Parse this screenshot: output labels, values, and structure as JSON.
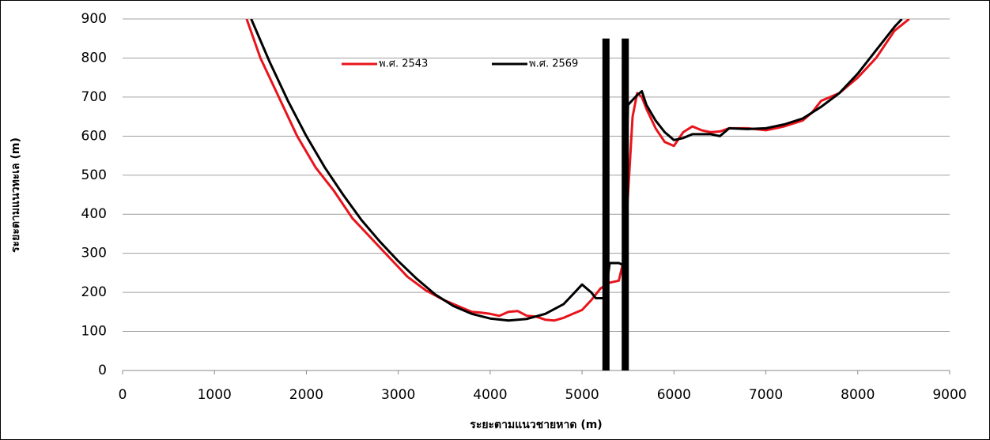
{
  "chart_data": {
    "type": "line",
    "x_label": "ระยะตามแนวชายหาด (m)",
    "y_label": "ระยะตามแนวทะเล (m)",
    "xlim": [
      0,
      9000
    ],
    "xticks": [
      0,
      1000,
      2000,
      3000,
      4000,
      5000,
      6000,
      7000,
      8000,
      9000
    ],
    "ylim": [
      0,
      900
    ],
    "yticks": [
      0,
      100,
      200,
      300,
      400,
      500,
      600,
      700,
      800,
      900
    ],
    "grid": true,
    "legend": "top",
    "series": [
      {
        "name": "พ.ศ. 2543",
        "color": "#e8141b",
        "x": [
          1350,
          1500,
          1700,
          1900,
          2100,
          2300,
          2500,
          2700,
          2900,
          3100,
          3300,
          3500,
          3700,
          3800,
          3900,
          4000,
          4100,
          4200,
          4300,
          4400,
          4500,
          4600,
          4700,
          4800,
          4900,
          5000,
          5100,
          5200,
          5300,
          5400,
          5450,
          5500,
          5550,
          5600,
          5650,
          5700,
          5800,
          5900,
          6000,
          6100,
          6200,
          6300,
          6400,
          6500,
          6600,
          6800,
          7000,
          7200,
          7400,
          7500,
          7600,
          7800,
          8000,
          8200,
          8400,
          8560
        ],
        "values": [
          900,
          800,
          700,
          600,
          520,
          460,
          390,
          340,
          290,
          240,
          205,
          180,
          160,
          150,
          148,
          145,
          140,
          150,
          152,
          140,
          138,
          130,
          128,
          135,
          145,
          155,
          180,
          210,
          225,
          230,
          280,
          450,
          650,
          710,
          700,
          670,
          620,
          585,
          575,
          610,
          625,
          615,
          610,
          612,
          620,
          620,
          615,
          625,
          640,
          660,
          690,
          710,
          750,
          800,
          870,
          900
        ]
      },
      {
        "name": "พ.ศ. 2569",
        "color": "#000000",
        "x": [
          1400,
          1600,
          1800,
          2000,
          2200,
          2400,
          2600,
          2800,
          3000,
          3200,
          3400,
          3600,
          3800,
          4000,
          4200,
          4400,
          4600,
          4800,
          4900,
          5000,
          5100,
          5150,
          5250,
          5300,
          5400,
          5450,
          5500,
          5600,
          5650,
          5700,
          5800,
          5900,
          6000,
          6100,
          6200,
          6400,
          6500,
          6600,
          6800,
          7000,
          7200,
          7400,
          7600,
          7800,
          8000,
          8200,
          8400,
          8480
        ],
        "values": [
          900,
          790,
          690,
          600,
          520,
          450,
          385,
          330,
          280,
          235,
          195,
          165,
          145,
          133,
          128,
          132,
          145,
          170,
          195,
          220,
          200,
          185,
          185,
          275,
          275,
          270,
          680,
          705,
          715,
          680,
          640,
          610,
          590,
          595,
          605,
          605,
          600,
          620,
          618,
          620,
          630,
          645,
          675,
          710,
          760,
          820,
          880,
          900
        ]
      }
    ],
    "markers": [
      {
        "x": 5260,
        "y": [
          0,
          850
        ],
        "color": "#000000"
      },
      {
        "x": 5470,
        "y": [
          0,
          850
        ],
        "color": "#000000"
      }
    ]
  }
}
